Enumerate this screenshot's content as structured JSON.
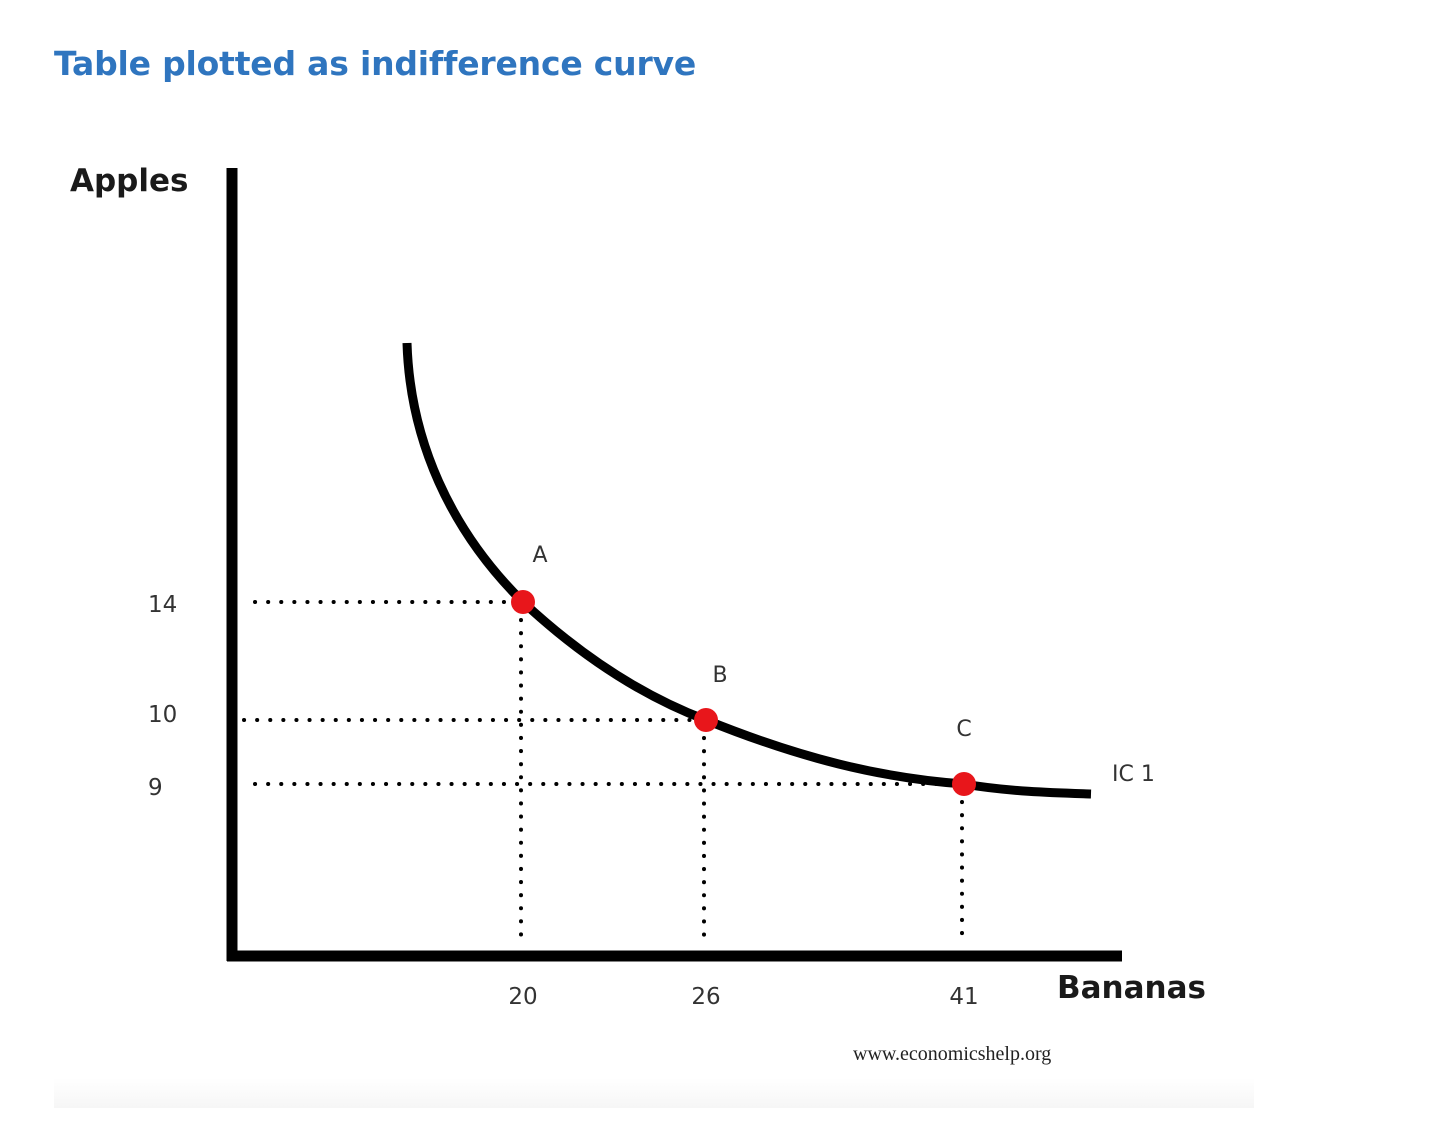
{
  "heading": "Table plotted as indifference curve",
  "chart_data": {
    "type": "line",
    "title": "",
    "xlabel": "Bananas",
    "ylabel": "Apples",
    "x_ticks": [
      20,
      26,
      41
    ],
    "y_ticks": [
      14,
      10,
      9
    ],
    "series": [
      {
        "name": "IC 1",
        "points": [
          {
            "label": "A",
            "x": 20,
            "y": 14
          },
          {
            "label": "B",
            "x": 26,
            "y": 10
          },
          {
            "label": "C",
            "x": 41,
            "y": 9
          }
        ]
      }
    ],
    "point_color": "#e8161b",
    "curve_color": "#000000",
    "guides": "dotted",
    "grid": false
  },
  "credit": "www.economicshelp.org"
}
